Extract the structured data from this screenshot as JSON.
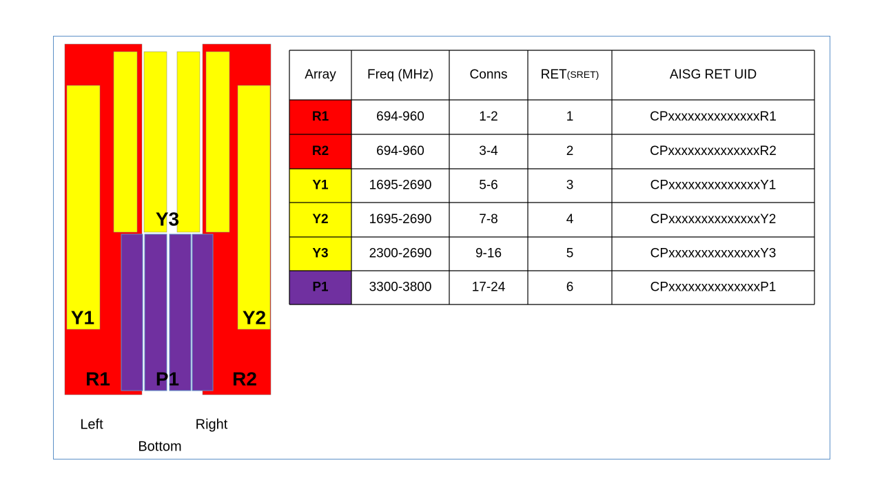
{
  "diagram": {
    "labels": {
      "y1": "Y1",
      "y2": "Y2",
      "y3": "Y3",
      "r1": "R1",
      "p1": "P1",
      "r2": "R2"
    },
    "sides": {
      "left": "Left",
      "bottom": "Bottom",
      "right": "Right"
    }
  },
  "table": {
    "headers": [
      "Array",
      "Freq (MHz)",
      "Conns",
      [
        "RET",
        "(SRET)"
      ],
      "AISG RET UID"
    ],
    "rows": [
      [
        "R1",
        "694-960",
        "1-2",
        1,
        "CPxxxxxxxxxxxxxxR1"
      ],
      [
        "R2",
        "694-960",
        "3-4",
        2,
        "CPxxxxxxxxxxxxxxR2"
      ],
      [
        "Y1",
        "1695-2690",
        "5-6",
        3,
        "CPxxxxxxxxxxxxxxY1"
      ],
      [
        "Y2",
        "1695-2690",
        "7-8",
        4,
        "CPxxxxxxxxxxxxxxY2"
      ],
      [
        "Y3",
        "2300-2690",
        "9-16",
        5,
        "CPxxxxxxxxxxxxxxY3"
      ],
      [
        "P1",
        "3300-3800",
        "17-24",
        6,
        "CPxxxxxxxxxxxxxxP1"
      ]
    ]
  }
}
